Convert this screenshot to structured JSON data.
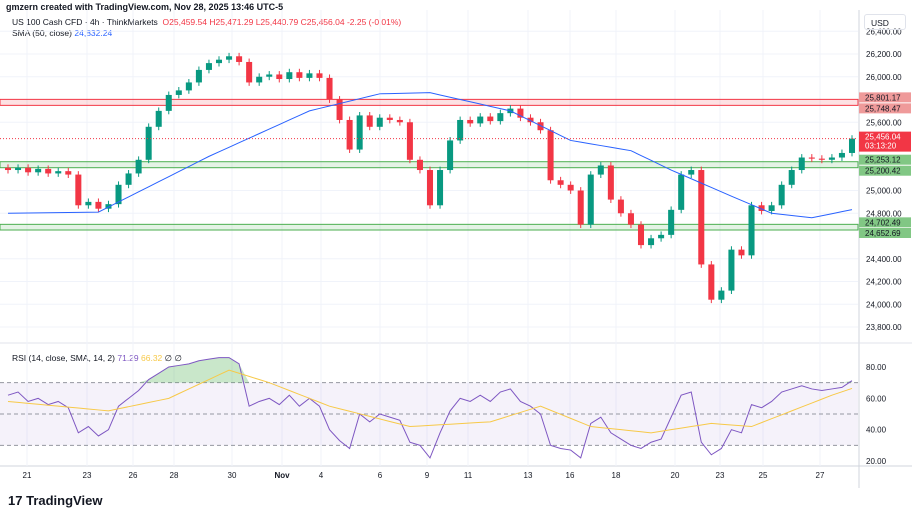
{
  "caption": "gmzern created with TradingView.com, Nov 28, 2025 13:46 UTC-5",
  "legend": {
    "symbol": "US 100 Cash CFD · 4h · ThinkMarkets",
    "open": "O25,459.54",
    "high": "H25,471.29",
    "low": "L25,440.79",
    "close": "C25,456.04",
    "change": "-2.25 (-0.01%)",
    "sma_label": "SMA (50, close)",
    "sma_value": "24,832.24",
    "rsi_label": "RSI (14, close, SMA, 14, 2)",
    "rsi_value": "71.29",
    "rsi_sma_value": "66.32",
    "rsi_extra": "∅ ∅"
  },
  "currency": "USD",
  "branding": "TradingView",
  "colors": {
    "up": "#089981",
    "down": "#f23645",
    "sma": "#2962ff",
    "rsi": "#7e57c2",
    "rsi_sma": "#f7c948",
    "zone_red": "#f23645",
    "zone_green": "#4caf50"
  },
  "chart_data": [
    {
      "type": "candlestick",
      "title": "US 100 Cash CFD · 4h · ThinkMarkets",
      "ylim": [
        23700,
        26450
      ],
      "y_ticks": [
        "26,400.00",
        "26,200.00",
        "26,000.00",
        "25,600.00",
        "25,000.00",
        "24,800.00",
        "24,400.00",
        "24,200.00",
        "24,000.00",
        "23,800.00"
      ],
      "y_tick_values": [
        26400,
        26200,
        26000,
        25600,
        25000,
        24800,
        24400,
        24200,
        24000,
        23800
      ],
      "x_ticks": [
        "21",
        "23",
        "26",
        "28",
        "30",
        "Nov",
        "4",
        "6",
        "9",
        "11",
        "13",
        "16",
        "18",
        "20",
        "23",
        "25",
        "27"
      ],
      "closes": [
        25180,
        25200,
        25160,
        25190,
        25150,
        25170,
        25140,
        24870,
        24900,
        24840,
        24880,
        25050,
        25150,
        25270,
        25560,
        25700,
        25840,
        25880,
        25950,
        26060,
        26120,
        26150,
        26180,
        26130,
        25950,
        26000,
        26020,
        25980,
        26040,
        25990,
        26030,
        25990,
        25800,
        25620,
        25360,
        25660,
        25560,
        25640,
        25620,
        25600,
        25270,
        25180,
        24870,
        25180,
        25440,
        25620,
        25590,
        25650,
        25610,
        25680,
        25720,
        25640,
        25600,
        25530,
        25090,
        25050,
        25000,
        24700,
        25140,
        25220,
        24920,
        24800,
        24700,
        24520,
        24580,
        24610,
        24830,
        25140,
        25180,
        24350,
        24040,
        24120,
        24480,
        24430,
        24870,
        24820,
        24870,
        25050,
        25180,
        25290,
        25280,
        25270,
        25290,
        25330,
        25456
      ],
      "sma_points": [
        [
          0,
          24800
        ],
        [
          9,
          24810
        ],
        [
          20,
          25300
        ],
        [
          30,
          25700
        ],
        [
          37,
          25850
        ],
        [
          42,
          25860
        ],
        [
          50,
          25700
        ],
        [
          56,
          25440
        ],
        [
          62,
          25350
        ],
        [
          66,
          25180
        ],
        [
          72,
          24950
        ],
        [
          76,
          24800
        ],
        [
          80,
          24760
        ],
        [
          84,
          24832
        ]
      ],
      "zones": [
        {
          "color": "red",
          "top": 25801.17,
          "bottom": 25748.47,
          "top_label": "25,801.17",
          "bottom_label": "25,748.47"
        },
        {
          "color": "green",
          "top": 25253.12,
          "bottom": 25200.42,
          "top_label": "25,253.12",
          "bottom_label": "25,200.42"
        },
        {
          "color": "green",
          "top": 24702.49,
          "bottom": 24652.69,
          "top_label": "24,702.49",
          "bottom_label": "24,652.69"
        }
      ],
      "last_price": 25456.04,
      "last_price_label": "25,456.04",
      "countdown": "03:13:20"
    },
    {
      "type": "line",
      "title": "RSI (14, close, SMA, 14, 2)",
      "ylim": [
        17,
        88
      ],
      "y_ticks": [
        "80.00",
        "60.00",
        "40.00",
        "20.00"
      ],
      "y_tick_values": [
        80,
        60,
        40,
        20
      ],
      "bands": [
        70,
        50,
        30
      ],
      "rsi": [
        62,
        64,
        58,
        60,
        56,
        58,
        54,
        38,
        42,
        36,
        40,
        55,
        60,
        65,
        72,
        76,
        80,
        81,
        82,
        84,
        85,
        86,
        86,
        82,
        55,
        58,
        60,
        56,
        62,
        55,
        60,
        55,
        40,
        33,
        28,
        50,
        45,
        50,
        48,
        46,
        32,
        30,
        22,
        38,
        52,
        60,
        58,
        62,
        58,
        64,
        66,
        58,
        55,
        50,
        30,
        28,
        27,
        22,
        44,
        48,
        38,
        34,
        30,
        28,
        32,
        34,
        48,
        62,
        64,
        32,
        24,
        28,
        40,
        38,
        56,
        54,
        58,
        64,
        66,
        68,
        66,
        65,
        66,
        67,
        71.29
      ],
      "rsi_sma_points": [
        [
          0,
          58
        ],
        [
          10,
          52
        ],
        [
          16,
          60
        ],
        [
          22,
          78
        ],
        [
          26,
          70
        ],
        [
          32,
          55
        ],
        [
          40,
          42
        ],
        [
          48,
          45
        ],
        [
          53,
          55
        ],
        [
          58,
          42
        ],
        [
          64,
          38
        ],
        [
          70,
          44
        ],
        [
          74,
          42
        ],
        [
          78,
          52
        ],
        [
          82,
          62
        ],
        [
          84,
          66.32
        ]
      ]
    }
  ]
}
